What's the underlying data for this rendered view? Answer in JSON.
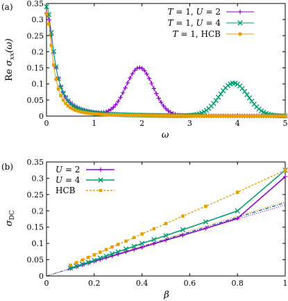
{
  "chart_data": [
    {
      "type": "line",
      "panel_label": "(a)",
      "xlabel": "ω",
      "ylabel": "Re σxx(ω)",
      "xlim": [
        0,
        5
      ],
      "ylim": [
        0,
        0.35
      ],
      "xticks": [
        "0",
        "1",
        "2",
        "3",
        "4",
        "5"
      ],
      "yticks": [
        "0",
        "0.05",
        "0.1",
        "0.15",
        "0.2",
        "0.25",
        "0.3",
        "0.35"
      ],
      "legend_position": "top-right",
      "series": [
        {
          "name": "T = 1, U = 2",
          "color": "#9400d3",
          "marker": "plus",
          "drude": {
            "amp": 0.32,
            "width": 0.19
          },
          "peaks": [
            {
              "center": 1.95,
              "amp": 0.148,
              "sigma": 0.28
            }
          ]
        },
        {
          "name": "T = 1, U = 4",
          "color": "#009e73",
          "marker": "cross",
          "drude": {
            "amp": 0.34,
            "width": 0.18
          },
          "peaks": [
            {
              "center": 3.92,
              "amp": 0.102,
              "sigma": 0.3
            }
          ]
        },
        {
          "name": "T = 1, HCB",
          "color": "#e69f00",
          "marker": "square",
          "drude": {
            "amp": 0.318,
            "width": 0.15
          },
          "peaks": []
        }
      ]
    },
    {
      "type": "line",
      "panel_label": "(b)",
      "xlabel": "β",
      "ylabel": "σDC",
      "xlim": [
        0,
        1
      ],
      "ylim": [
        0,
        0.35
      ],
      "xticks": [
        "0",
        "0.2",
        "0.4",
        "0.6",
        "0.8",
        "1"
      ],
      "yticks": [
        "0",
        "0.05",
        "0.1",
        "0.15",
        "0.2",
        "0.25",
        "0.3",
        "0.35"
      ],
      "legend_position": "top-left",
      "series": [
        {
          "name": "U = 2",
          "color": "#9400d3",
          "marker": "plus",
          "x": [
            0.1,
            0.125,
            0.15,
            0.175,
            0.2,
            0.225,
            0.25,
            0.275,
            0.3,
            0.333,
            0.367,
            0.4,
            0.45,
            0.5,
            0.571,
            0.667,
            0.8,
            1.0
          ],
          "y": [
            0.023,
            0.0285,
            0.034,
            0.0395,
            0.045,
            0.0505,
            0.056,
            0.0615,
            0.067,
            0.074,
            0.081,
            0.088,
            0.099,
            0.11,
            0.125,
            0.146,
            0.177,
            0.305
          ]
        },
        {
          "name": "U = 4",
          "color": "#009e73",
          "marker": "cross",
          "x": [
            0.1,
            0.125,
            0.15,
            0.175,
            0.2,
            0.225,
            0.25,
            0.275,
            0.3,
            0.333,
            0.367,
            0.4,
            0.45,
            0.5,
            0.571,
            0.667,
            0.8,
            1.0
          ],
          "y": [
            0.024,
            0.03,
            0.036,
            0.042,
            0.048,
            0.055,
            0.061,
            0.068,
            0.074,
            0.083,
            0.091,
            0.1,
            0.112,
            0.124,
            0.142,
            0.166,
            0.2,
            0.325
          ]
        },
        {
          "name": "HCB",
          "color": "#e69f00",
          "marker": "square",
          "x": [
            0.1,
            0.125,
            0.15,
            0.175,
            0.2,
            0.225,
            0.25,
            0.275,
            0.3,
            0.333,
            0.367,
            0.4,
            0.45,
            0.5,
            0.571,
            0.667,
            0.8,
            1.0
          ],
          "y": [
            0.033,
            0.041,
            0.049,
            0.057,
            0.065,
            0.073,
            0.081,
            0.089,
            0.097,
            0.107,
            0.118,
            0.129,
            0.145,
            0.161,
            0.184,
            0.214,
            0.257,
            0.325
          ]
        }
      ],
      "reference_lines": [
        {
          "color": "#9400d3",
          "slope": 0.218
        },
        {
          "color": "#009e73",
          "slope": 0.224
        },
        {
          "color": "#e69f00",
          "slope": 0.23
        },
        {
          "color": "#3050b0",
          "slope": 0.226
        }
      ]
    }
  ]
}
